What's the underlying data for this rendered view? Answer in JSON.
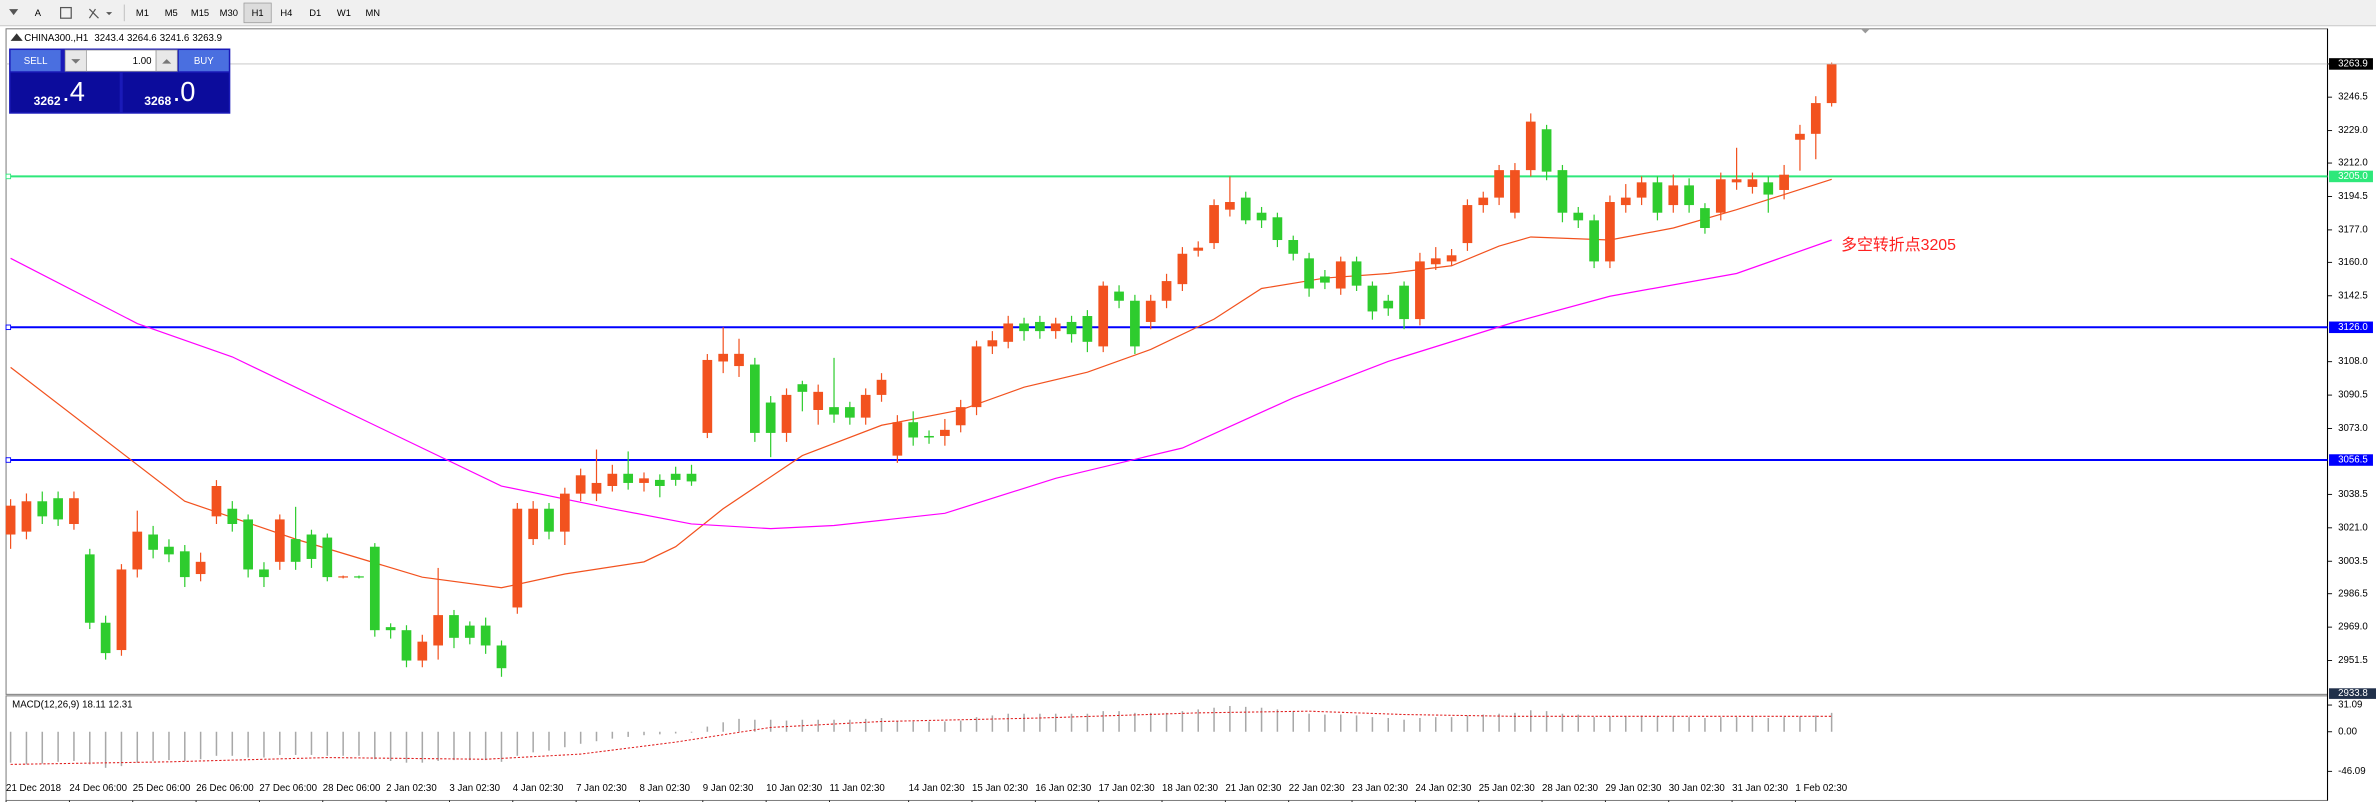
{
  "toolbar": {
    "tools": [
      "A"
    ],
    "timeframes": [
      "M1",
      "M5",
      "M15",
      "M30",
      "H1",
      "H4",
      "D1",
      "W1",
      "MN"
    ]
  },
  "trade_panel": {
    "sell": "SELL",
    "buy": "BUY",
    "volume": "1.00",
    "bid_int": "3262",
    "bid_frac": ".4",
    "ask_int": "3268",
    "ask_frac": ".0"
  },
  "chart_data": {
    "type": "candlestick",
    "symbol": "CHINA300.,H1",
    "up_color": "#f2521f",
    "down_color": "#2ecc2e",
    "ylim": [
      2933.8,
      3281.5
    ],
    "yticks": [
      3263.9,
      3246.5,
      {
        "value": 3229,
        "label": "3229.0"
      },
      {
        "value": 3212,
        "label": "3212.0"
      },
      3194.5,
      {
        "value": 3177,
        "label": "3177.0"
      },
      {
        "value": 3160,
        "label": "3160.0"
      },
      3142.5,
      {
        "value": 3108,
        "label": "3108.0"
      },
      3090.5,
      {
        "value": 3073,
        "label": "3073.0"
      },
      3038.5,
      {
        "value": 3021,
        "label": "3021.0"
      },
      3003.5,
      2986.5,
      {
        "value": 2969,
        "label": "2969.0"
      },
      2951.5
    ],
    "categories": [
      "21 Dec 2018",
      null,
      null,
      null,
      "24 Dec 06:00",
      null,
      null,
      null,
      "25 Dec 06:00",
      null,
      null,
      null,
      "26 Dec 06:00",
      null,
      null,
      null,
      "27 Dec 06:00",
      null,
      null,
      null,
      "28 Dec 06:00",
      null,
      null,
      null,
      "2 Jan 02:30",
      null,
      null,
      null,
      "3 Jan 02:30",
      null,
      null,
      null,
      "4 Jan 02:30",
      null,
      null,
      null,
      "7 Jan 02:30",
      null,
      null,
      null,
      "8 Jan 02:30",
      null,
      null,
      null,
      "9 Jan 02:30",
      null,
      null,
      null,
      "10 Jan 02:30",
      null,
      null,
      null,
      "11 Jan 02:30",
      null,
      null,
      null,
      null,
      "14 Jan 02:30",
      null,
      null,
      null,
      "15 Jan 02:30",
      null,
      null,
      null,
      "16 Jan 02:30",
      null,
      null,
      null,
      "17 Jan 02:30",
      null,
      null,
      null,
      "18 Jan 02:30",
      null,
      null,
      null,
      "21 Jan 02:30",
      null,
      null,
      null,
      "22 Jan 02:30",
      null,
      null,
      null,
      "23 Jan 02:30",
      null,
      null,
      null,
      "24 Jan 02:30",
      null,
      null,
      null,
      "25 Jan 02:30",
      null,
      null,
      null,
      "28 Jan 02:30",
      null,
      null,
      null,
      "29 Jan 02:30",
      null,
      null,
      null,
      "30 Jan 02:30",
      null,
      null,
      null,
      "31 Jan 02:30",
      null,
      null,
      null,
      "1 Feb 02:30",
      null,
      null
    ],
    "open": [
      3017.5,
      3019.0,
      3034.9,
      3036.5,
      3023.0,
      3007.1,
      2971.3,
      2957.0,
      2999.2,
      3017.5,
      3011.1,
      3008.7,
      2996.8,
      3027.0,
      3031.0,
      3025.4,
      2999.2,
      3003.2,
      3015.1,
      3017.5,
      3015.9,
      2995.2,
      2995.6,
      3011.1,
      2969.0,
      2967.4,
      2951.5,
      2959.4,
      2975.3,
      2969.8,
      2969.8,
      2959.4,
      2979.3,
      3015.1,
      3031.0,
      3019.0,
      3038.9,
      3038.9,
      3042.9,
      3049.3,
      3044.5,
      3046.1,
      3049.3,
      3049.3,
      3070.7,
      3108.1,
      3105.7,
      3106.5,
      3086.6,
      3070.7,
      3096.2,
      3082.7,
      3084.2,
      3084.2,
      3078.7,
      3090.6,
      3058.8,
      3076.3,
      3069.1,
      3069.1,
      3074.7,
      3084.2,
      3116.0,
      3118.4,
      3128.0,
      3128.8,
      3124.0,
      3128.8,
      3131.9,
      3116.0,
      3144.7,
      3139.9,
      3128.8,
      3139.9,
      3148.6,
      3166.1,
      3170.1,
      3187.6,
      3193.9,
      3186.0,
      3183.6,
      3171.7,
      3162.1,
      3152.6,
      3146.3,
      3160.5,
      3147.8,
      3139.9,
      3147.8,
      3130.3,
      3159.0,
      3160.5,
      3170.1,
      3190.0,
      3193.9,
      3186.0,
      3208.3,
      3229.7,
      3208.3,
      3186.0,
      3182.0,
      3160.5,
      3190.0,
      3193.9,
      3201.9,
      3190.0,
      3200.3,
      3188.4,
      3186.0,
      3201.9,
      3199.5,
      3201.9,
      3197.9,
      3224.2,
      3227.3,
      3243.4
    ],
    "high": [
      3036,
      3039,
      3040,
      3040,
      3040,
      3010,
      2975,
      3002,
      3030,
      3022,
      3015,
      3012,
      3008,
      3046,
      3035,
      3028,
      3003,
      3028,
      3032,
      3020,
      3018,
      2996,
      2996,
      3013,
      2971,
      2970,
      2965,
      3000,
      2978,
      2972,
      2974,
      2962,
      3034,
      3035,
      3034,
      3042,
      3052,
      3062,
      3054,
      3061,
      3050,
      3049,
      3053,
      3054,
      3112,
      3126,
      3120,
      3110,
      3090,
      3094,
      3098,
      3096,
      3110,
      3087,
      3094,
      3102,
      3080,
      3082,
      3072,
      3078,
      3088,
      3119,
      3124,
      3132,
      3131,
      3132,
      3131,
      3132,
      3135,
      3150,
      3148,
      3143,
      3143,
      3154,
      3168,
      3171,
      3193,
      3205,
      3197,
      3189,
      3186,
      3174,
      3165,
      3156,
      3163,
      3163,
      3150,
      3143,
      3150,
      3165,
      3168,
      3167,
      3193,
      3197,
      3211,
      3212,
      3238,
      3232,
      3211,
      3189,
      3185,
      3195,
      3201,
      3205,
      3205,
      3206,
      3204,
      3191,
      3207,
      3220,
      3207,
      3205,
      3211,
      3232,
      3247,
      3264.6
    ],
    "low": [
      3010,
      3015,
      3023,
      3022,
      3020,
      2968,
      2952,
      2954,
      2995,
      3005,
      3003,
      2990,
      2993,
      3023,
      3019,
      2995,
      2990,
      2999,
      2999,
      3000,
      2993,
      2994.5,
      2994.5,
      2964,
      2963,
      2948,
      2948,
      2952,
      2958,
      2960,
      2955,
      2943,
      2976,
      3012,
      3015,
      3012,
      3035,
      3035,
      3040,
      3041,
      3040,
      3037,
      3043,
      3043,
      3068,
      3102,
      3100,
      3066,
      3058,
      3066,
      3082,
      3075,
      3076,
      3075,
      3075,
      3087,
      3055,
      3064,
      3065,
      3064,
      3071,
      3080,
      3112,
      3115,
      3119,
      3120,
      3120,
      3118,
      3113,
      3113,
      3136,
      3112,
      3125,
      3136,
      3145,
      3163,
      3167,
      3184,
      3180,
      3178,
      3168,
      3161,
      3142,
      3146,
      3143,
      3145,
      3130,
      3132,
      3125,
      3127,
      3156,
      3158,
      3166,
      3186,
      3190,
      3183,
      3205,
      3203,
      3181,
      3178,
      3157,
      3157,
      3186,
      3190,
      3182,
      3186,
      3186,
      3175,
      3182,
      3198,
      3196,
      3186,
      3193,
      3208,
      3214,
      3241.6
    ],
    "close": [
      3032.6,
      3034.9,
      3027.0,
      3025.4,
      3036.5,
      2971.3,
      2955.4,
      2999.2,
      3019.0,
      3009.5,
      3007.1,
      2995.2,
      3003.2,
      3042.9,
      3023.0,
      2999.2,
      2995.2,
      3025.4,
      3003.2,
      3004.7,
      2995.2,
      2995.6,
      2995.2,
      2967.4,
      2967.4,
      2951.5,
      2961.4,
      2975.3,
      2963.4,
      2963.4,
      2959.4,
      2947.5,
      3031.0,
      3031.0,
      3019.0,
      3038.9,
      3048.5,
      3044.5,
      3049.3,
      3044.5,
      3046.9,
      3042.9,
      3046.1,
      3045.3,
      3108.9,
      3112.1,
      3112.1,
      3070.7,
      3070.7,
      3090.6,
      3092.2,
      3092.2,
      3080.3,
      3078.7,
      3090.6,
      3098.5,
      3076.3,
      3068.3,
      3068.3,
      3072.3,
      3084.2,
      3116.0,
      3119.2,
      3128.0,
      3124.0,
      3124.0,
      3128.0,
      3122.4,
      3118.4,
      3147.8,
      3139.9,
      3116.0,
      3139.9,
      3150.2,
      3164.5,
      3167.7,
      3190.0,
      3191.6,
      3182.0,
      3182.0,
      3171.7,
      3164.5,
      3146.3,
      3149.4,
      3160.5,
      3147.8,
      3134.3,
      3135.9,
      3130.3,
      3160.5,
      3162.1,
      3163.7,
      3190.0,
      3193.9,
      3208.3,
      3208.3,
      3233.7,
      3207.5,
      3186.0,
      3182.0,
      3160.5,
      3191.6,
      3193.9,
      3201.9,
      3186.0,
      3200.3,
      3190.0,
      3178.0,
      3203.5,
      3203.5,
      3203.5,
      3195.5,
      3205.9,
      3227.3,
      3243.4,
      3263.9
    ],
    "ma_lines": [
      {
        "color": "#f2521f",
        "x": [
          0,
          11,
          18,
          26,
          31,
          35,
          40,
          42,
          45,
          50,
          55,
          60,
          64,
          68,
          72,
          76,
          79,
          83,
          87,
          91,
          94,
          96,
          101,
          105,
          109,
          115
        ],
        "values": [
          3105.0,
          3034.9,
          3015.1,
          2995.2,
          2989.6,
          2996.8,
          3003.2,
          3011.1,
          3031.0,
          3058.8,
          3074.7,
          3082.7,
          3094.6,
          3102.5,
          3114.4,
          3130.3,
          3146.3,
          3151.8,
          3154.2,
          3158.2,
          3168.5,
          3173.3,
          3171.7,
          3178.0,
          3187.6,
          3203.5
        ]
      },
      {
        "color": "#ff00ff",
        "x": [
          0,
          8,
          14,
          23,
          31,
          38,
          43,
          48,
          52,
          59,
          66,
          74,
          81,
          87,
          95,
          101,
          109,
          115
        ],
        "values": [
          3162.1,
          3128.0,
          3110.5,
          3074.7,
          3042.9,
          3031.0,
          3023.0,
          3020.6,
          3022.2,
          3028.6,
          3046.9,
          3062.8,
          3089.0,
          3108.1,
          3128.8,
          3142.3,
          3154.2,
          3171.7
        ]
      }
    ],
    "hlines": [
      {
        "value": 3205,
        "label": "3205.0",
        "color": "#2ee87a"
      },
      {
        "value": 3126,
        "label": "3126.0",
        "color": "#0000ff"
      },
      {
        "value": 3056.5,
        "label": "3056.5",
        "color": "#0000ff"
      }
    ],
    "annotation": {
      "text": "多空转折点3205",
      "color": "#ff2020"
    },
    "indicator": {
      "type": "macd",
      "label": "MACD(12,26,9) 18.11 12.31",
      "ylim": [
        -80,
        40
      ],
      "yticks": [
        31.09,
        {
          "value": 0,
          "label": "0.00"
        },
        -46.09
      ],
      "bar_color": "#a8a8a8",
      "histogram": [
        -36,
        -38,
        -37,
        -35,
        -34,
        -38,
        -42,
        -40,
        -36,
        -34,
        -33,
        -34,
        -32,
        -28,
        -28,
        -30,
        -30,
        -27,
        -27,
        -27,
        -28,
        -28,
        -28,
        -32,
        -34,
        -36,
        -36,
        -34,
        -33,
        -33,
        -33,
        -35,
        -28,
        -24,
        -22,
        -18,
        -14,
        -11,
        -8,
        -6,
        -4,
        -3,
        -2,
        -1,
        6,
        11,
        15,
        14,
        14,
        13,
        14,
        14,
        14,
        14,
        15,
        16,
        12,
        12,
        12,
        12,
        13,
        17,
        19,
        21,
        21,
        21,
        21,
        21,
        21,
        24,
        24,
        22,
        22,
        22,
        24,
        26,
        28,
        30,
        29,
        28,
        26,
        24,
        21,
        20,
        20,
        19,
        17,
        16,
        14,
        16,
        17,
        17,
        19,
        20,
        21,
        22,
        25,
        24,
        21,
        20,
        17,
        18,
        18,
        19,
        18,
        18,
        17,
        16,
        17,
        17,
        17,
        16,
        17,
        18,
        19,
        22
      ],
      "signal": {
        "color": "#e02020",
        "x": [
          0,
          10,
          20,
          30,
          36,
          42,
          48,
          55,
          65,
          75,
          82,
          88,
          95,
          105,
          115
        ],
        "values": [
          -38,
          -35,
          -30,
          -32,
          -26,
          -12,
          5,
          12,
          16,
          22,
          24,
          20,
          18,
          18,
          18
        ]
      }
    }
  }
}
